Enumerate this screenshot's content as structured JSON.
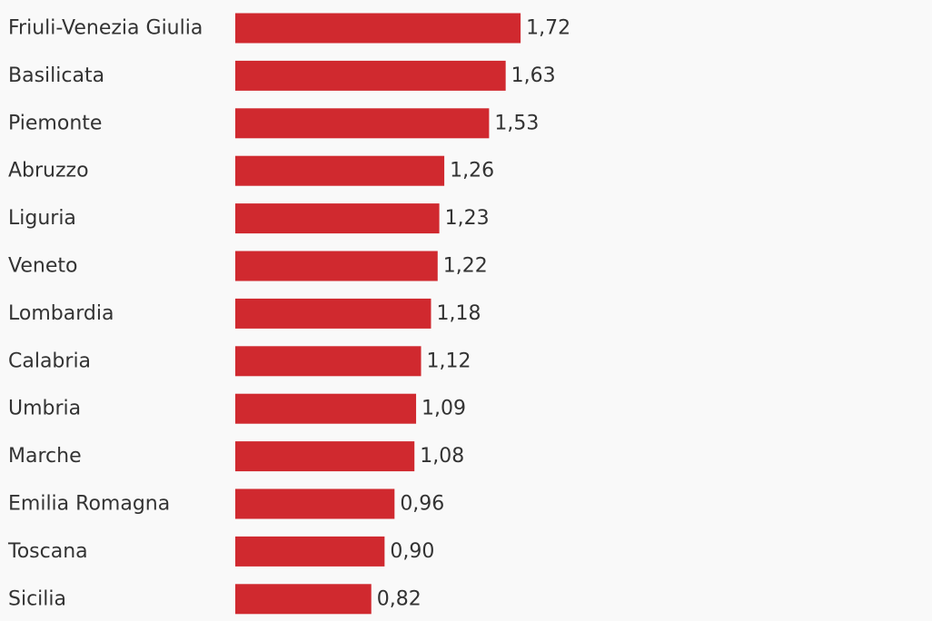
{
  "chart_data": {
    "type": "bar",
    "orientation": "horizontal",
    "categories": [
      "Friuli-Venezia Giulia",
      "Basilicata",
      "Piemonte",
      "Abruzzo",
      "Liguria",
      "Veneto",
      "Lombardia",
      "Calabria",
      "Umbria",
      "Marche",
      "Emilia Romagna",
      "Toscana",
      "Sicilia"
    ],
    "values": [
      1.72,
      1.63,
      1.53,
      1.26,
      1.23,
      1.22,
      1.18,
      1.12,
      1.09,
      1.08,
      0.96,
      0.9,
      0.82
    ],
    "value_labels": [
      "1,72",
      "1,63",
      "1,53",
      "1,26",
      "1,23",
      "1,22",
      "1,18",
      "1,12",
      "1,09",
      "1,08",
      "0,96",
      "0,90",
      "0,82"
    ],
    "xlim": [
      0,
      4.2
    ],
    "grid": false,
    "bar_color": "#d0292f"
  }
}
